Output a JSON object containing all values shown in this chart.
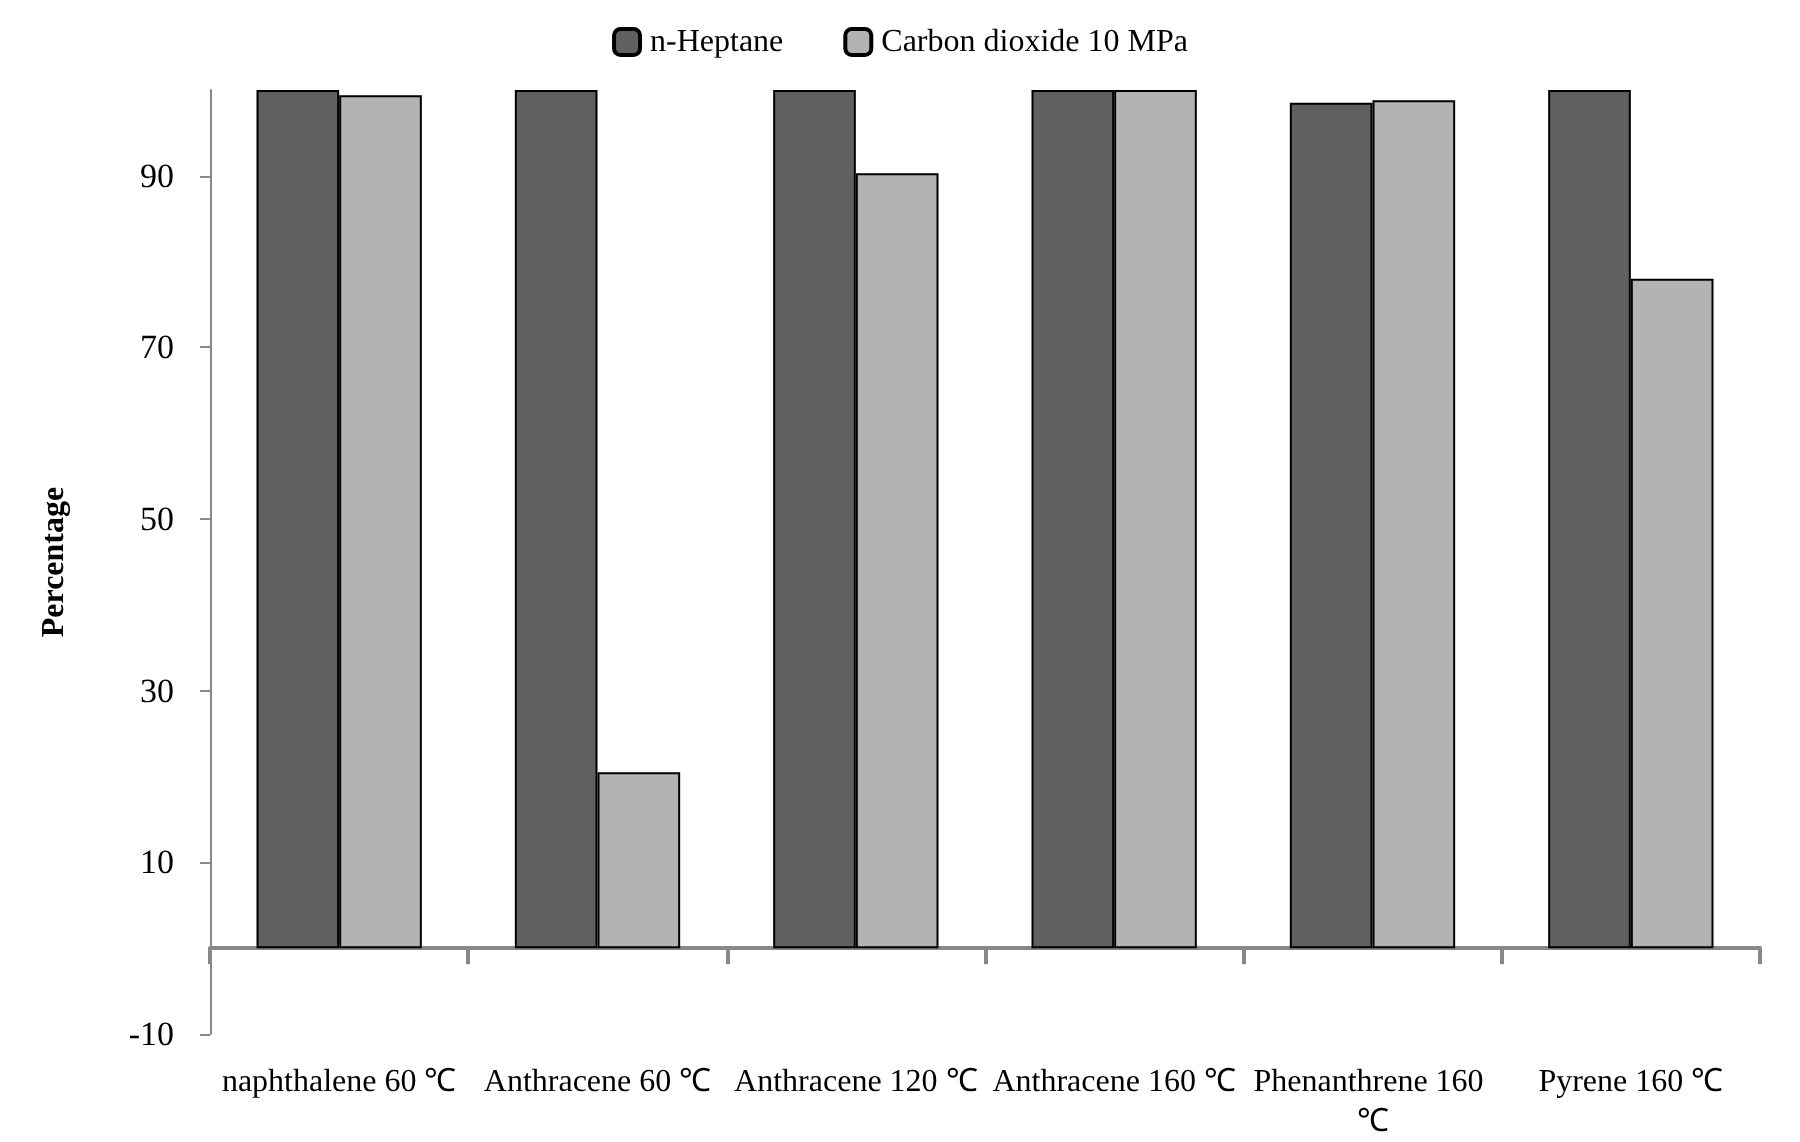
{
  "chart_data": {
    "type": "bar",
    "ylabel": "Percentage",
    "categories": [
      "naphthalene 60 ℃",
      "Anthracene 60 ℃",
      "Anthracene 120 ℃",
      "Anthracene 160 ℃",
      "Phenanthrene 160 ℃",
      "Pyrene 160 ℃"
    ],
    "series": [
      {
        "name": "n-Heptane",
        "color": "#606060",
        "values": [
          100,
          100,
          100,
          100,
          98.5,
          100
        ]
      },
      {
        "name": "Carbon dioxide 10 MPa",
        "color": "#b3b3b3",
        "values": [
          99.4,
          20.5,
          90.3,
          100,
          98.8,
          78
        ]
      }
    ],
    "ylim": [
      -10,
      100
    ],
    "yticks": [
      -10,
      10,
      30,
      50,
      70,
      90
    ],
    "grid": false,
    "legend": "top"
  }
}
